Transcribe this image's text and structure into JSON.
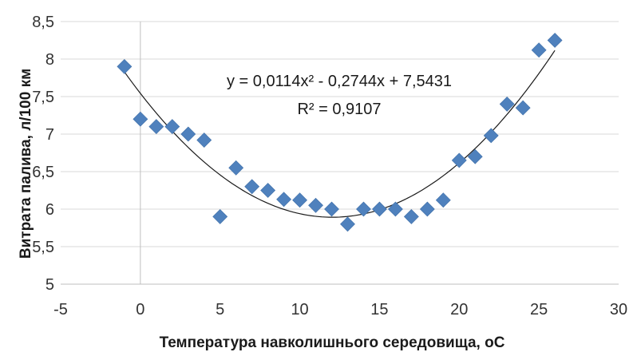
{
  "chart_data": {
    "type": "scatter",
    "xlabel": "Температура навколишнього середовища, оС",
    "ylabel": "Витрата палива, л/100 км",
    "xlim": [
      -5,
      30
    ],
    "ylim": [
      5,
      8.5
    ],
    "x_ticks": [
      "-5",
      "0",
      "5",
      "10",
      "15",
      "20",
      "25",
      "30"
    ],
    "y_ticks": [
      "5",
      "5,5",
      "6",
      "6,5",
      "7",
      "7,5",
      "8",
      "8,5"
    ],
    "grid": "horizontal",
    "marker": "diamond",
    "marker_color": "#4f81bd",
    "trendline": {
      "kind": "polynomial",
      "coefficients": {
        "a": 0.0114,
        "b": -0.2744,
        "c": 7.5431
      },
      "equation_label": "y = 0,0114x² - 0,2744x + 7,5431",
      "r2_label": "R² = 0,9107",
      "color": "#1a1a1a"
    },
    "points": [
      {
        "x": -1,
        "y": 7.9
      },
      {
        "x": 0,
        "y": 7.2
      },
      {
        "x": 1,
        "y": 7.1
      },
      {
        "x": 2,
        "y": 7.1
      },
      {
        "x": 3,
        "y": 7.0
      },
      {
        "x": 4,
        "y": 6.92
      },
      {
        "x": 5,
        "y": 5.9
      },
      {
        "x": 6,
        "y": 6.55
      },
      {
        "x": 7,
        "y": 6.3
      },
      {
        "x": 8,
        "y": 6.25
      },
      {
        "x": 9,
        "y": 6.13
      },
      {
        "x": 10,
        "y": 6.12
      },
      {
        "x": 11,
        "y": 6.05
      },
      {
        "x": 12,
        "y": 6.0
      },
      {
        "x": 13,
        "y": 5.8
      },
      {
        "x": 14,
        "y": 6.0
      },
      {
        "x": 15,
        "y": 6.0
      },
      {
        "x": 16,
        "y": 6.0
      },
      {
        "x": 17,
        "y": 5.9
      },
      {
        "x": 18,
        "y": 6.0
      },
      {
        "x": 19,
        "y": 6.12
      },
      {
        "x": 20,
        "y": 6.65
      },
      {
        "x": 21,
        "y": 6.7
      },
      {
        "x": 22,
        "y": 6.98
      },
      {
        "x": 23,
        "y": 7.4
      },
      {
        "x": 24,
        "y": 7.35
      },
      {
        "x": 25,
        "y": 8.12
      },
      {
        "x": 26,
        "y": 8.25
      }
    ]
  }
}
